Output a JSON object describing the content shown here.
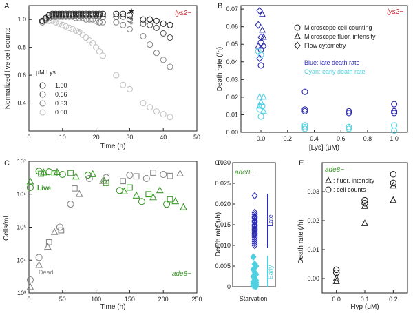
{
  "colors": {
    "black": "#222222",
    "blue": "#2b2bb0",
    "cyan": "#4fd0e0",
    "green": "#3a9a28",
    "red": "#c0282d",
    "gray": "#888888"
  },
  "chart_data": [
    {
      "panel": "A",
      "type": "scatter",
      "xlabel": "Time (h)",
      "ylabel": "Normalized live cell counts",
      "xlim": [
        0,
        50
      ],
      "ylim": [
        0.2,
        1.1
      ],
      "xticks": [
        "0",
        "10",
        "20",
        "30",
        "40",
        "50"
      ],
      "yticks": [
        "0.4",
        "0.6",
        "0.8",
        "1.0"
      ],
      "strain": "lys2−",
      "legend_title": "μM Lys",
      "series": [
        {
          "name": "1.00",
          "color": "#222222",
          "x": [
            4,
            5,
            6,
            7,
            8,
            9,
            10,
            11,
            12,
            13,
            14,
            15,
            16,
            17,
            18,
            19,
            20,
            21,
            22,
            26,
            28,
            30,
            34,
            36,
            38,
            40,
            42
          ],
          "y": [
            0.99,
            1.01,
            1.03,
            1.04,
            1.04,
            1.04,
            1.04,
            1.04,
            1.04,
            1.04,
            1.04,
            1.04,
            1.04,
            1.04,
            1.04,
            1.04,
            1.04,
            1.04,
            1.04,
            1.04,
            1.04,
            1.03,
            1.0,
            1.0,
            0.99,
            0.97,
            0.96
          ]
        },
        {
          "name": "0.66",
          "color": "#555555",
          "x": [
            4,
            5,
            6,
            7,
            8,
            9,
            10,
            11,
            12,
            13,
            14,
            15,
            16,
            17,
            18,
            19,
            20,
            21,
            22,
            26,
            28,
            30,
            34,
            36,
            38,
            40,
            42
          ],
          "y": [
            0.99,
            1.0,
            1.02,
            1.03,
            1.03,
            1.03,
            1.03,
            1.03,
            1.03,
            1.03,
            1.03,
            1.03,
            1.03,
            1.03,
            1.03,
            1.03,
            1.03,
            1.03,
            1.02,
            1.02,
            1.02,
            1.0,
            0.97,
            0.96,
            0.94,
            0.9,
            0.87
          ]
        },
        {
          "name": "0.33",
          "color": "#8a8a8a",
          "x": [
            4,
            5,
            6,
            7,
            8,
            9,
            10,
            11,
            12,
            13,
            14,
            15,
            16,
            17,
            18,
            19,
            20,
            21,
            22,
            26,
            28,
            30,
            34,
            36,
            38,
            40,
            42
          ],
          "y": [
            0.98,
            1.0,
            1.01,
            1.02,
            1.02,
            1.02,
            1.02,
            1.02,
            1.02,
            1.02,
            1.01,
            1.01,
            1.01,
            1.0,
            1.0,
            1.0,
            0.99,
            0.98,
            0.98,
            0.98,
            0.96,
            0.93,
            0.88,
            0.82,
            0.76,
            0.71,
            0.66
          ]
        },
        {
          "name": "0.00",
          "color": "#c4c4c4",
          "x": [
            4,
            5,
            6,
            7,
            8,
            9,
            10,
            11,
            12,
            13,
            14,
            15,
            16,
            17,
            18,
            19,
            20,
            21,
            22,
            26,
            28,
            30,
            34,
            36,
            38,
            40,
            42
          ],
          "y": [
            0.98,
            0.99,
            0.99,
            0.99,
            0.98,
            0.97,
            0.96,
            0.95,
            0.94,
            0.93,
            0.92,
            0.91,
            0.89,
            0.87,
            0.85,
            0.83,
            0.8,
            0.77,
            0.74,
            0.6,
            0.53,
            0.5,
            0.4,
            0.37,
            0.34,
            0.32,
            0.3
          ]
        }
      ],
      "markers": [
        {
          "symbol": "★",
          "x": 30.5,
          "y": 1.06,
          "color": "#222222"
        },
        {
          "symbol": "*",
          "x": 30.5,
          "y": 0.995,
          "color": "#555555"
        },
        {
          "symbol": "*",
          "x": 30.5,
          "y": 0.965,
          "color": "#8a8a8a"
        },
        {
          "symbol": "*",
          "x": 20.5,
          "y": 0.96,
          "color": "#8a8a8a"
        },
        {
          "symbol": "*",
          "x": 15.0,
          "y": 0.91,
          "color": "#c4c4c4"
        }
      ]
    },
    {
      "panel": "B",
      "type": "scatter",
      "xlabel": "[Lys] (μM)",
      "ylabel": "Death rate (/h)",
      "xlim": [
        -0.15,
        1.1
      ],
      "ylim": [
        0,
        0.072
      ],
      "xticks": [
        "0.0",
        "0.2",
        "0.4",
        "0.6",
        "0.8",
        "1.0"
      ],
      "yticks": [
        "0.00",
        "0.01",
        "0.02",
        "0.03",
        "0.04",
        "0.05",
        "0.06",
        "0.07"
      ],
      "strain": "lys2−",
      "legend": [
        "Microscope cell counting",
        "Microscope fluor. intensity",
        "Flow cytometry"
      ],
      "annotations": [
        "Blue: late death rate",
        "Cyan: early death rate"
      ],
      "series": [
        {
          "name": "late",
          "color": "#2b2bb0",
          "points": [
            {
              "x": -0.01,
              "y": 0.069,
              "m": "diamond"
            },
            {
              "x": 0.01,
              "y": 0.067,
              "m": "triangle"
            },
            {
              "x": -0.02,
              "y": 0.061,
              "m": "diamond"
            },
            {
              "x": 0.01,
              "y": 0.058,
              "m": "triangle"
            },
            {
              "x": 0.0,
              "y": 0.054,
              "m": "diamond"
            },
            {
              "x": 0.02,
              "y": 0.054,
              "m": "triangle"
            },
            {
              "x": 0.0,
              "y": 0.051,
              "m": "circle"
            },
            {
              "x": 0.02,
              "y": 0.049,
              "m": "diamond"
            },
            {
              "x": -0.02,
              "y": 0.049,
              "m": "triangle"
            },
            {
              "x": 0.0,
              "y": 0.047,
              "m": "circle"
            },
            {
              "x": -0.01,
              "y": 0.042,
              "m": "diamond"
            },
            {
              "x": 0.0,
              "y": 0.038,
              "m": "circle"
            },
            {
              "x": 0.33,
              "y": 0.023,
              "m": "circle"
            },
            {
              "x": 0.33,
              "y": 0.013,
              "m": "circle"
            },
            {
              "x": 0.33,
              "y": 0.012,
              "m": "circle"
            },
            {
              "x": 0.66,
              "y": 0.012,
              "m": "circle"
            },
            {
              "x": 0.66,
              "y": 0.011,
              "m": "circle"
            },
            {
              "x": 1.0,
              "y": 0.016,
              "m": "circle"
            },
            {
              "x": 1.0,
              "y": 0.012,
              "m": "circle"
            },
            {
              "x": 1.0,
              "y": 0.011,
              "m": "circle"
            }
          ]
        },
        {
          "name": "early",
          "color": "#4fd0e0",
          "points": [
            {
              "x": -0.02,
              "y": 0.046,
              "m": "circle"
            },
            {
              "x": 0.0,
              "y": 0.044,
              "m": "circle"
            },
            {
              "x": -0.01,
              "y": 0.02,
              "m": "triangle"
            },
            {
              "x": 0.02,
              "y": 0.02,
              "m": "triangle"
            },
            {
              "x": 0.0,
              "y": 0.017,
              "m": "triangle"
            },
            {
              "x": -0.01,
              "y": 0.015,
              "m": "triangle"
            },
            {
              "x": 0.01,
              "y": 0.015,
              "m": "circle"
            },
            {
              "x": -0.01,
              "y": 0.013,
              "m": "circle"
            },
            {
              "x": 0.02,
              "y": 0.012,
              "m": "triangle"
            },
            {
              "x": 0.0,
              "y": 0.009,
              "m": "circle"
            },
            {
              "x": 0.33,
              "y": 0.004,
              "m": "circle"
            },
            {
              "x": 0.33,
              "y": 0.003,
              "m": "circle"
            },
            {
              "x": 0.33,
              "y": 0.002,
              "m": "circle"
            },
            {
              "x": 0.66,
              "y": 0.003,
              "m": "circle"
            },
            {
              "x": 0.66,
              "y": 0.002,
              "m": "circle"
            },
            {
              "x": 1.0,
              "y": 0.004,
              "m": "circle"
            },
            {
              "x": 1.0,
              "y": 0.001,
              "m": "circle"
            }
          ]
        }
      ]
    },
    {
      "panel": "C",
      "type": "scatter",
      "xlabel": "Time (h)",
      "ylabel": "Cells/mL",
      "xlim": [
        0,
        250
      ],
      "ylog": true,
      "ylim": [
        1000,
        10000000
      ],
      "xticks": [
        "0",
        "50",
        "100",
        "150",
        "200",
        "250"
      ],
      "yticks": [
        "10³",
        "10⁴",
        "10⁵",
        "10⁶",
        "10⁷"
      ],
      "strain": "ade8−",
      "labels": [
        "Live",
        "Dead"
      ],
      "series": [
        {
          "name": "Live",
          "color": "#3a9a28",
          "points": [
            {
              "x": 2,
              "y": 2400000,
              "m": "triangle"
            },
            {
              "x": 2,
              "y": 1600000,
              "m": "circle"
            },
            {
              "x": 15,
              "y": 5000000,
              "m": "circle"
            },
            {
              "x": 18,
              "y": 4200000,
              "m": "square"
            },
            {
              "x": 22,
              "y": 4500000,
              "m": "triangle"
            },
            {
              "x": 30,
              "y": 4800000,
              "m": "circle"
            },
            {
              "x": 38,
              "y": 4300000,
              "m": "square"
            },
            {
              "x": 42,
              "y": 4600000,
              "m": "triangle"
            },
            {
              "x": 50,
              "y": 4000000,
              "m": "circle"
            },
            {
              "x": 62,
              "y": 4400000,
              "m": "square"
            },
            {
              "x": 70,
              "y": 3400000,
              "m": "triangle"
            },
            {
              "x": 88,
              "y": 3800000,
              "m": "circle"
            },
            {
              "x": 95,
              "y": 4000000,
              "m": "triangle"
            },
            {
              "x": 112,
              "y": 2500000,
              "m": "triangle"
            },
            {
              "x": 115,
              "y": 2200000,
              "m": "square"
            },
            {
              "x": 135,
              "y": 1300000,
              "m": "circle"
            },
            {
              "x": 142,
              "y": 1200000,
              "m": "triangle"
            },
            {
              "x": 150,
              "y": 1600000,
              "m": "square"
            },
            {
              "x": 160,
              "y": 900000,
              "m": "triangle"
            },
            {
              "x": 168,
              "y": 600000,
              "m": "circle"
            },
            {
              "x": 178,
              "y": 1000000,
              "m": "square"
            },
            {
              "x": 185,
              "y": 800000,
              "m": "triangle"
            },
            {
              "x": 195,
              "y": 1300000,
              "m": "triangle"
            },
            {
              "x": 205,
              "y": 500000,
              "m": "circle"
            },
            {
              "x": 210,
              "y": 700000,
              "m": "square"
            },
            {
              "x": 218,
              "y": 600000,
              "m": "triangle"
            },
            {
              "x": 230,
              "y": 400000,
              "m": "triangle"
            }
          ]
        },
        {
          "name": "Dead",
          "color": "#888888",
          "points": [
            {
              "x": 2,
              "y": 1500,
              "m": "triangle"
            },
            {
              "x": 2,
              "y": 2500,
              "m": "circle"
            },
            {
              "x": 15,
              "y": 12000,
              "m": "circle"
            },
            {
              "x": 15,
              "y": 7000,
              "m": "triangle"
            },
            {
              "x": 28,
              "y": 25000,
              "m": "triangle"
            },
            {
              "x": 30,
              "y": 35000,
              "m": "square"
            },
            {
              "x": 38,
              "y": 70000,
              "m": "triangle"
            },
            {
              "x": 46,
              "y": 100000,
              "m": "circle"
            },
            {
              "x": 48,
              "y": 80000,
              "m": "square"
            },
            {
              "x": 62,
              "y": 500000,
              "m": "circle"
            },
            {
              "x": 68,
              "y": 1500000,
              "m": "square"
            },
            {
              "x": 75,
              "y": 1000000,
              "m": "triangle"
            },
            {
              "x": 90,
              "y": 3000000,
              "m": "circle"
            },
            {
              "x": 110,
              "y": 2500000,
              "m": "triangle"
            },
            {
              "x": 115,
              "y": 3200000,
              "m": "circle"
            },
            {
              "x": 140,
              "y": 2500000,
              "m": "square"
            },
            {
              "x": 150,
              "y": 3800000,
              "m": "circle"
            },
            {
              "x": 160,
              "y": 3500000,
              "m": "square"
            },
            {
              "x": 175,
              "y": 3000000,
              "m": "circle"
            },
            {
              "x": 185,
              "y": 4500000,
              "m": "square"
            },
            {
              "x": 200,
              "y": 4000000,
              "m": "circle"
            },
            {
              "x": 210,
              "y": 3600000,
              "m": "square"
            },
            {
              "x": 225,
              "y": 4200000,
              "m": "triangle"
            }
          ]
        }
      ]
    },
    {
      "panel": "D",
      "type": "scatter",
      "xlabel": "Starvation",
      "ylabel": "Death rate (/h)",
      "ylim": [
        0,
        0.03
      ],
      "yticks": [
        "0",
        "0.005",
        "0.010",
        "0.015",
        "0.020",
        "0.025",
        "0.030"
      ],
      "strain": "ade8−",
      "bracket_labels": [
        "Late",
        "Early"
      ],
      "series": [
        {
          "name": "late",
          "color": "#2b2bb0",
          "y": [
            0.022,
            0.018,
            0.0175,
            0.017,
            0.0168,
            0.0165,
            0.016,
            0.0158,
            0.0155,
            0.015,
            0.0148,
            0.0145,
            0.014,
            0.0138,
            0.0135,
            0.013,
            0.0128,
            0.0125,
            0.012,
            0.0115,
            0.011,
            0.0105,
            0.01
          ]
        },
        {
          "name": "early",
          "color": "#4fd0e0",
          "y": [
            0.0072,
            0.0055,
            0.005,
            0.0042,
            0.0035,
            0.003,
            0.0025,
            0.002,
            0.0015,
            0.0012,
            0.001,
            0.001,
            0.0008,
            0.0006,
            0.0005,
            0.0003,
            0.0002,
            0.0001
          ]
        }
      ]
    },
    {
      "panel": "E",
      "type": "scatter",
      "xlabel": "Hyp (μM)",
      "ylabel": "Death rate (/h)",
      "xlim": [
        -0.05,
        0.25
      ],
      "ylim": [
        -0.005,
        0.04
      ],
      "xticks": [
        "0.0",
        "0.1",
        "0.2"
      ],
      "yticks": [
        "0.00",
        "0.01",
        "0.02",
        "0.03"
      ],
      "strain": "ade8−",
      "legend": [
        ": fluor. intensity",
        ": cell counts"
      ],
      "series": [
        {
          "name": "fluor. intensity",
          "m": "triangle",
          "color": "#222222",
          "x": [
            0.0,
            0.0,
            0.1,
            0.1,
            0.2,
            0.2
          ],
          "y": [
            0.0,
            -0.001,
            0.019,
            0.025,
            0.027,
            0.032
          ]
        },
        {
          "name": "cell counts",
          "m": "circle",
          "color": "#222222",
          "x": [
            0.0,
            0.0,
            0.1,
            0.1,
            0.2,
            0.2
          ],
          "y": [
            0.003,
            0.002,
            0.026,
            0.027,
            0.033,
            0.036
          ]
        }
      ]
    }
  ]
}
